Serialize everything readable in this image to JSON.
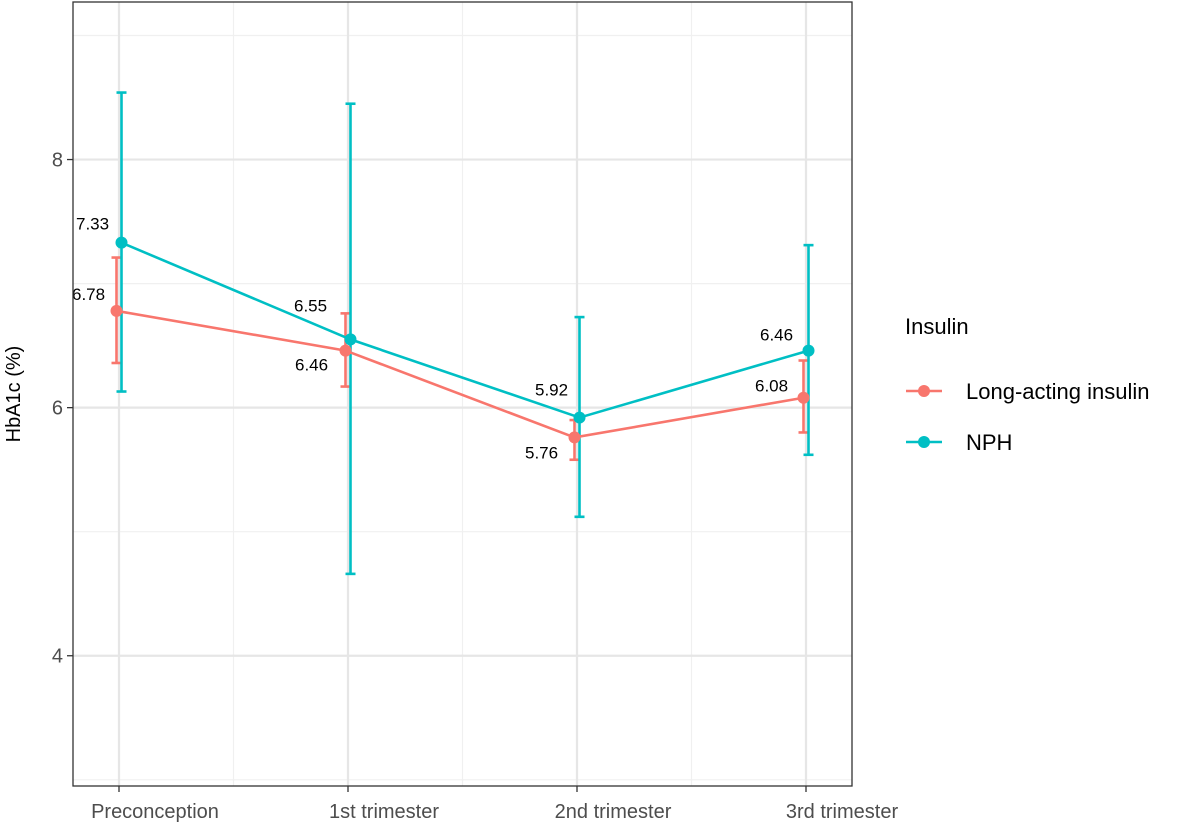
{
  "chart_data": {
    "type": "line",
    "categories": [
      "Preconception",
      "1st trimester",
      "2nd trimester",
      "3rd trimester"
    ],
    "ylabel": "HbA1c (%)",
    "xlabel": "",
    "ylim": [
      2.95,
      9.27
    ],
    "yticks": [
      4,
      6,
      8
    ],
    "grid": true,
    "legend": {
      "title": "Insulin",
      "position": "right"
    },
    "series": [
      {
        "name": "Long-acting insulin",
        "color": "#F8766D",
        "values": [
          6.78,
          6.46,
          5.76,
          6.08
        ],
        "value_labels": [
          "6.78",
          "6.46",
          "5.76",
          "6.08"
        ],
        "error_low": [
          6.36,
          6.17,
          5.58,
          5.8
        ],
        "error_high": [
          7.21,
          6.76,
          5.9,
          6.38
        ]
      },
      {
        "name": "NPH",
        "color": "#00BFC4",
        "values": [
          7.33,
          6.55,
          5.92,
          6.46
        ],
        "value_labels": [
          "7.33",
          "6.55",
          "5.92",
          "6.46"
        ],
        "error_low": [
          6.13,
          4.66,
          5.12,
          5.62
        ],
        "error_high": [
          8.54,
          8.45,
          6.73,
          7.31
        ]
      }
    ]
  }
}
